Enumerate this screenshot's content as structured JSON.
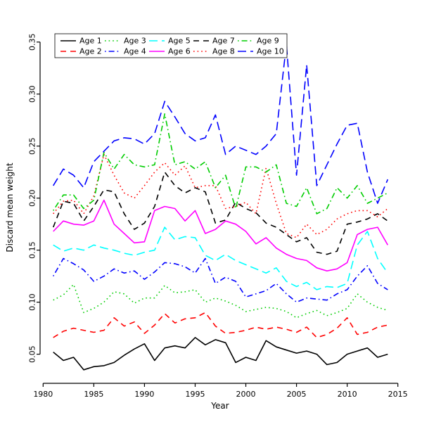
{
  "figure": {
    "background": "#ffffff"
  },
  "chart_data": {
    "type": "line",
    "title": "",
    "xlabel": "Year",
    "ylabel": "Discard mean weight",
    "xlim": [
      1979.7,
      2015.3
    ],
    "ylim": [
      0.022,
      0.36
    ],
    "xticks": [
      1980,
      1985,
      1990,
      1995,
      2000,
      2005,
      2010,
      2015
    ],
    "xtick_labels": [
      "1980",
      "1985",
      "1990",
      "1995",
      "2000",
      "2005",
      "2010",
      "2015"
    ],
    "yticks": [
      0.05,
      0.1,
      0.15,
      0.2,
      0.25,
      0.3,
      0.35
    ],
    "ytick_labels": [
      "0.05",
      "0.10",
      "0.15",
      "0.20",
      "0.25",
      "0.30",
      "0.35"
    ],
    "grid": false,
    "legend_position": "top-left-inside",
    "x": [
      1981,
      1982,
      1983,
      1984,
      1985,
      1986,
      1987,
      1988,
      1989,
      1990,
      1991,
      1992,
      1993,
      1994,
      1995,
      1996,
      1997,
      1998,
      1999,
      2000,
      2001,
      2002,
      2003,
      2004,
      2005,
      2006,
      2007,
      2008,
      2009,
      2010,
      2011,
      2012,
      2013,
      2014
    ],
    "series": [
      {
        "name": "Age 1",
        "color": "#000000",
        "linetype": "solid",
        "values": [
          0.052,
          0.044,
          0.047,
          0.035,
          0.038,
          0.039,
          0.042,
          0.049,
          0.055,
          0.06,
          0.044,
          0.056,
          0.058,
          0.056,
          0.066,
          0.059,
          0.064,
          0.061,
          0.042,
          0.047,
          0.044,
          0.063,
          0.057,
          0.054,
          0.051,
          0.053,
          0.05,
          0.04,
          0.042,
          0.05,
          0.053,
          0.056,
          0.047,
          0.05
        ]
      },
      {
        "name": "Age 2",
        "color": "#FF0000",
        "linetype": "dashed",
        "values": [
          0.066,
          0.072,
          0.075,
          0.073,
          0.071,
          0.073,
          0.085,
          0.077,
          0.081,
          0.07,
          0.078,
          0.089,
          0.08,
          0.084,
          0.085,
          0.09,
          0.077,
          0.07,
          0.071,
          0.073,
          0.076,
          0.074,
          0.076,
          0.074,
          0.071,
          0.076,
          0.066,
          0.069,
          0.075,
          0.085,
          0.069,
          0.071,
          0.076,
          0.078
        ]
      },
      {
        "name": "Age 3",
        "color": "#00CD00",
        "linetype": "dotted",
        "values": [
          0.102,
          0.107,
          0.117,
          0.09,
          0.094,
          0.1,
          0.11,
          0.108,
          0.099,
          0.104,
          0.104,
          0.116,
          0.109,
          0.11,
          0.112,
          0.1,
          0.104,
          0.101,
          0.097,
          0.091,
          0.093,
          0.095,
          0.094,
          0.091,
          0.085,
          0.089,
          0.092,
          0.087,
          0.09,
          0.094,
          0.108,
          0.1,
          0.095,
          0.092
        ]
      },
      {
        "name": "Age 4",
        "color": "#0000FF",
        "linetype": "dashdot",
        "values": [
          0.125,
          0.142,
          0.137,
          0.131,
          0.12,
          0.125,
          0.132,
          0.128,
          0.13,
          0.122,
          0.129,
          0.138,
          0.137,
          0.134,
          0.128,
          0.142,
          0.118,
          0.124,
          0.12,
          0.105,
          0.108,
          0.111,
          0.118,
          0.108,
          0.1,
          0.104,
          0.103,
          0.102,
          0.108,
          0.112,
          0.125,
          0.135,
          0.118,
          0.112
        ]
      },
      {
        "name": "Age 5",
        "color": "#00FFFF",
        "linetype": "longdash",
        "values": [
          0.155,
          0.149,
          0.152,
          0.15,
          0.155,
          0.152,
          0.15,
          0.147,
          0.145,
          0.148,
          0.15,
          0.172,
          0.16,
          0.163,
          0.162,
          0.145,
          0.14,
          0.146,
          0.14,
          0.136,
          0.132,
          0.128,
          0.133,
          0.12,
          0.115,
          0.119,
          0.112,
          0.115,
          0.114,
          0.118,
          0.155,
          0.168,
          0.142,
          0.128
        ]
      },
      {
        "name": "Age 6",
        "color": "#FF00FF",
        "linetype": "solid",
        "values": [
          0.168,
          0.178,
          0.175,
          0.174,
          0.178,
          0.198,
          0.175,
          0.166,
          0.157,
          0.158,
          0.188,
          0.192,
          0.19,
          0.178,
          0.188,
          0.166,
          0.17,
          0.178,
          0.175,
          0.168,
          0.156,
          0.162,
          0.152,
          0.146,
          0.142,
          0.14,
          0.133,
          0.13,
          0.132,
          0.138,
          0.165,
          0.17,
          0.172,
          0.155
        ]
      },
      {
        "name": "Age 7",
        "color": "#000000",
        "linetype": "dashed",
        "values": [
          0.172,
          0.197,
          0.195,
          0.178,
          0.192,
          0.208,
          0.206,
          0.185,
          0.17,
          0.176,
          0.192,
          0.225,
          0.212,
          0.205,
          0.21,
          0.206,
          0.176,
          0.179,
          0.196,
          0.19,
          0.186,
          0.176,
          0.172,
          0.165,
          0.158,
          0.162,
          0.148,
          0.146,
          0.149,
          0.175,
          0.177,
          0.18,
          0.185,
          0.178
        ]
      },
      {
        "name": "Age 8",
        "color": "#FF0000",
        "linetype": "dotted",
        "values": [
          0.185,
          0.197,
          0.198,
          0.185,
          0.202,
          0.242,
          0.222,
          0.205,
          0.2,
          0.212,
          0.225,
          0.234,
          0.222,
          0.231,
          0.21,
          0.212,
          0.212,
          0.19,
          0.192,
          0.196,
          0.185,
          0.229,
          0.195,
          0.166,
          0.162,
          0.175,
          0.165,
          0.17,
          0.18,
          0.185,
          0.188,
          0.188,
          0.182,
          0.19
        ]
      },
      {
        "name": "Age 9",
        "color": "#00CD00",
        "linetype": "dashdot",
        "values": [
          0.188,
          0.203,
          0.203,
          0.19,
          0.198,
          0.244,
          0.228,
          0.242,
          0.232,
          0.23,
          0.232,
          0.281,
          0.232,
          0.235,
          0.228,
          0.235,
          0.21,
          0.222,
          0.19,
          0.23,
          0.23,
          0.225,
          0.232,
          0.195,
          0.192,
          0.21,
          0.185,
          0.19,
          0.21,
          0.2,
          0.212,
          0.195,
          0.2,
          0.205
        ]
      },
      {
        "name": "Age 10",
        "color": "#0000FF",
        "linetype": "longdash",
        "values": [
          0.212,
          0.228,
          0.222,
          0.21,
          0.235,
          0.245,
          0.255,
          0.258,
          0.257,
          0.252,
          0.262,
          0.293,
          0.278,
          0.262,
          0.255,
          0.258,
          0.28,
          0.242,
          0.25,
          0.246,
          0.242,
          0.25,
          0.262,
          0.348,
          0.222,
          0.328,
          0.212,
          0.232,
          0.252,
          0.27,
          0.272,
          0.225,
          0.195,
          0.218
        ]
      }
    ]
  }
}
